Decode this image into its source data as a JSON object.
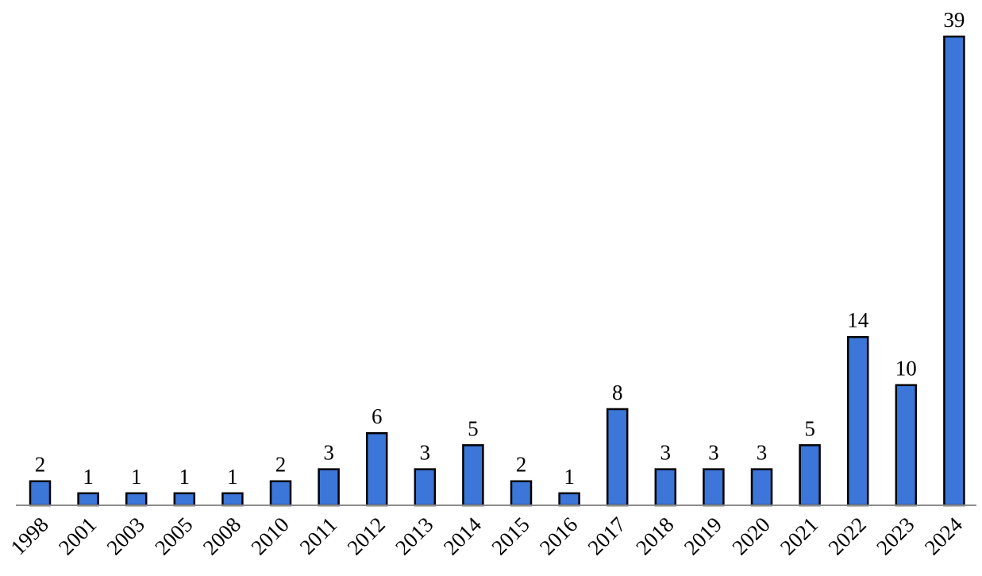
{
  "chart_data": {
    "type": "bar",
    "title": "",
    "xlabel": "",
    "ylabel": "",
    "categories": [
      "1998",
      "2001",
      "2003",
      "2005",
      "2008",
      "2010",
      "2011",
      "2012",
      "2013",
      "2014",
      "2015",
      "2016",
      "2017",
      "2018",
      "2019",
      "2020",
      "2021",
      "2022",
      "2023",
      "2024"
    ],
    "values": [
      2,
      1,
      1,
      1,
      1,
      2,
      3,
      6,
      3,
      5,
      2,
      1,
      8,
      3,
      3,
      3,
      5,
      14,
      10,
      39
    ],
    "ylim": [
      0,
      39
    ],
    "grid": false,
    "legend": null,
    "data_labels": true,
    "x_tick_rotation": -45,
    "colors": {
      "bar": "#3b76d8",
      "bar_edge": "#000000",
      "axis": "#8c8c8c"
    }
  }
}
